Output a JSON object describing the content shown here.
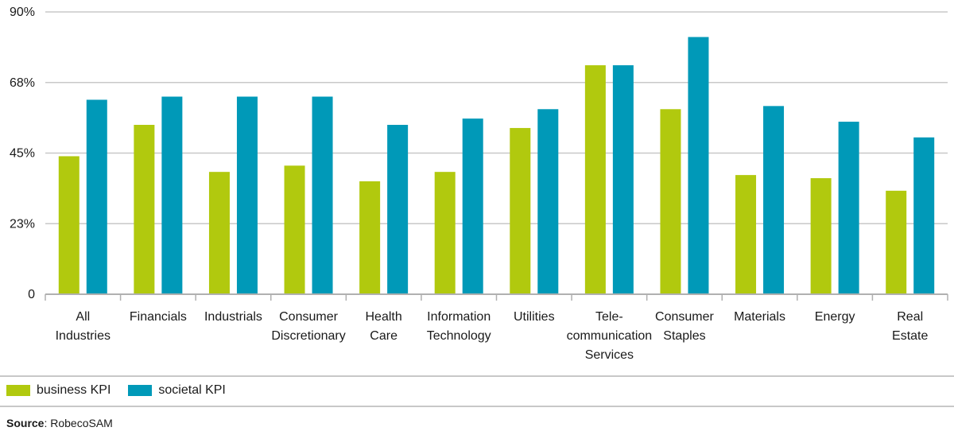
{
  "chart_data": {
    "type": "bar",
    "categories": [
      [
        "All",
        "Industries"
      ],
      [
        "Financials"
      ],
      [
        "Industrials"
      ],
      [
        "Consumer",
        "Discretionary"
      ],
      [
        "Health",
        "Care"
      ],
      [
        "Information",
        "Technology"
      ],
      [
        "Utilities"
      ],
      [
        "Tele-",
        "communication",
        "Services"
      ],
      [
        "Consumer",
        "Staples"
      ],
      [
        "Materials"
      ],
      [
        "Energy"
      ],
      [
        "Real",
        "Estate"
      ]
    ],
    "series": [
      {
        "name": "business KPI",
        "color": "#b1c90e",
        "values": [
          44,
          54,
          39,
          41,
          36,
          39,
          53,
          73,
          59,
          38,
          37,
          33
        ]
      },
      {
        "name": "societal KPI",
        "color": "#0099b8",
        "values": [
          62,
          63,
          63,
          63,
          54,
          56,
          59,
          73,
          82,
          60,
          55,
          50
        ]
      }
    ],
    "yticks": [
      {
        "value": 0,
        "label": "0"
      },
      {
        "value": 22.5,
        "label": "23%"
      },
      {
        "value": 45,
        "label": "45%"
      },
      {
        "value": 67.5,
        "label": "68%"
      },
      {
        "value": 90,
        "label": "90%"
      }
    ],
    "ylim": [
      0,
      90
    ],
    "grid": true,
    "legend_position": "bottom-left"
  },
  "source": {
    "label": "Source",
    "text": ": RobecoSAM"
  }
}
